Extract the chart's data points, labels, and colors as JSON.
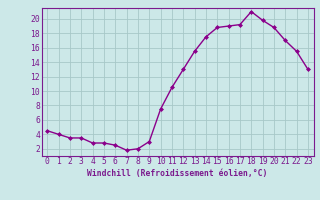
{
  "x": [
    0,
    1,
    2,
    3,
    4,
    5,
    6,
    7,
    8,
    9,
    10,
    11,
    12,
    13,
    14,
    15,
    16,
    17,
    18,
    19,
    20,
    21,
    22,
    23
  ],
  "y": [
    4.5,
    4.0,
    3.5,
    3.5,
    2.8,
    2.8,
    2.5,
    1.8,
    2.0,
    3.0,
    7.5,
    10.5,
    13.0,
    15.5,
    17.5,
    18.8,
    19.0,
    19.2,
    21.0,
    19.8,
    18.8,
    17.0,
    15.5,
    13.0
  ],
  "line_color": "#8b008b",
  "marker": "D",
  "marker_size": 2.0,
  "bg_color": "#cce8e8",
  "grid_color": "#a8c8c8",
  "xlabel": "Windchill (Refroidissement éolien,°C)",
  "xlim": [
    -0.5,
    23.5
  ],
  "ylim": [
    1.0,
    21.5
  ],
  "yticks": [
    2,
    4,
    6,
    8,
    10,
    12,
    14,
    16,
    18,
    20
  ],
  "xticks": [
    0,
    1,
    2,
    3,
    4,
    5,
    6,
    7,
    8,
    9,
    10,
    11,
    12,
    13,
    14,
    15,
    16,
    17,
    18,
    19,
    20,
    21,
    22,
    23
  ],
  "font_color": "#7b1a8e",
  "label_fontsize": 5.8,
  "tick_fontsize": 5.8,
  "line_width": 1.0
}
